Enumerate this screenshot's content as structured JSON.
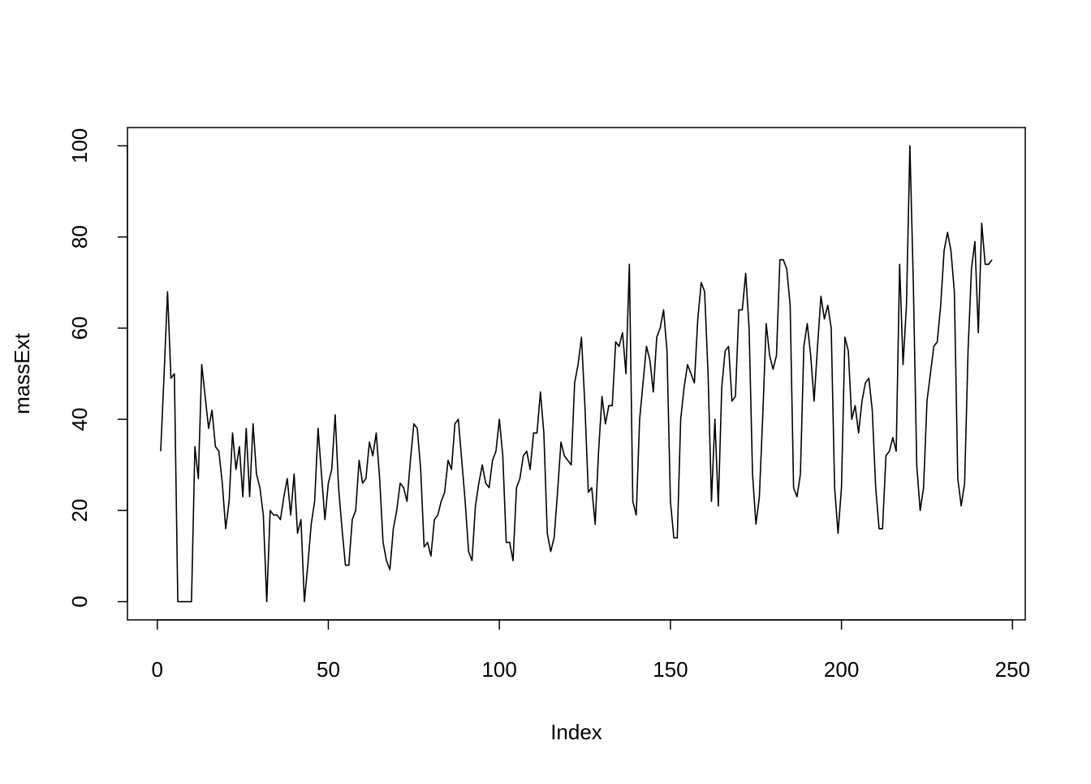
{
  "chart_data": {
    "type": "line",
    "xlabel": "Index",
    "ylabel": "massExt",
    "color": "#000000",
    "x": [
      1,
      2,
      3,
      4,
      5,
      6,
      7,
      8,
      9,
      10,
      11,
      12,
      13,
      14,
      15,
      16,
      17,
      18,
      19,
      20,
      21,
      22,
      23,
      24,
      25,
      26,
      27,
      28,
      29,
      30,
      31,
      32,
      33,
      34,
      35,
      36,
      37,
      38,
      39,
      40,
      41,
      42,
      43,
      44,
      45,
      46,
      47,
      48,
      49,
      50,
      51,
      52,
      53,
      54,
      55,
      56,
      57,
      58,
      59,
      60,
      61,
      62,
      63,
      64,
      65,
      66,
      67,
      68,
      69,
      70,
      71,
      72,
      73,
      74,
      75,
      76,
      77,
      78,
      79,
      80,
      81,
      82,
      83,
      84,
      85,
      86,
      87,
      88,
      89,
      90,
      91,
      92,
      93,
      94,
      95,
      96,
      97,
      98,
      99,
      100,
      101,
      102,
      103,
      104,
      105,
      106,
      107,
      108,
      109,
      110,
      111,
      112,
      113,
      114,
      115,
      116,
      117,
      118,
      119,
      120,
      121,
      122,
      123,
      124,
      125,
      126,
      127,
      128,
      129,
      130,
      131,
      132,
      133,
      134,
      135,
      136,
      137,
      138,
      139,
      140,
      141,
      142,
      143,
      144,
      145,
      146,
      147,
      148,
      149,
      150,
      151,
      152,
      153,
      154,
      155,
      156,
      157,
      158,
      159,
      160,
      161,
      162,
      163,
      164,
      165,
      166,
      167,
      168,
      169,
      170,
      171,
      172,
      173,
      174,
      175,
      176,
      177,
      178,
      179,
      180,
      181,
      182,
      183,
      184,
      185,
      186,
      187,
      188,
      189,
      190,
      191,
      192,
      193,
      194,
      195,
      196,
      197,
      198,
      199,
      200,
      201,
      202,
      203,
      204,
      205,
      206,
      207,
      208,
      209,
      210,
      211,
      212,
      213,
      214,
      215,
      216,
      217,
      218,
      219,
      220,
      221,
      222,
      223,
      224,
      225,
      226,
      227,
      228,
      229,
      230,
      231,
      232,
      233,
      234,
      235,
      236,
      237,
      238,
      239,
      240,
      241,
      242,
      243,
      244
    ],
    "values": [
      33,
      50,
      68,
      49,
      50,
      0,
      0,
      0,
      0,
      0,
      34,
      27,
      52,
      45,
      38,
      42,
      34,
      33,
      26,
      16,
      22,
      37,
      29,
      34,
      23,
      38,
      23,
      39,
      28,
      25,
      19,
      0,
      20,
      19,
      19,
      18,
      23,
      27,
      19,
      28,
      15,
      18,
      0,
      8,
      17,
      22,
      38,
      28,
      18,
      26,
      29,
      41,
      25,
      16,
      8,
      8,
      18,
      20,
      31,
      26,
      27,
      35,
      32,
      37,
      27,
      13,
      9,
      7,
      16,
      20,
      26,
      25,
      22,
      31,
      39,
      38,
      29,
      12,
      13,
      10,
      18,
      19,
      22,
      24,
      31,
      29,
      39,
      40,
      31,
      22,
      11,
      9,
      21,
      26,
      30,
      26,
      25,
      31,
      33,
      40,
      32,
      13,
      13,
      9,
      25,
      27,
      32,
      33,
      29,
      37,
      37,
      46,
      37,
      15,
      11,
      14,
      24,
      35,
      32,
      31,
      30,
      48,
      52,
      58,
      43,
      24,
      25,
      17,
      33,
      45,
      39,
      43,
      43,
      57,
      56,
      59,
      50,
      74,
      22,
      19,
      40,
      48,
      56,
      53,
      46,
      58,
      60,
      64,
      55,
      22,
      14,
      14,
      40,
      47,
      52,
      50,
      48,
      62,
      70,
      68,
      50,
      22,
      40,
      21,
      47,
      55,
      56,
      44,
      45,
      64,
      64,
      72,
      60,
      28,
      17,
      23,
      41,
      61,
      54,
      51,
      54,
      75,
      75,
      73,
      65,
      25,
      23,
      28,
      56,
      61,
      54,
      44,
      56,
      67,
      62,
      65,
      60,
      25,
      15,
      25,
      58,
      55,
      40,
      43,
      37,
      44,
      48,
      49,
      42,
      25,
      16,
      16,
      32,
      33,
      36,
      33,
      74,
      52,
      65,
      100,
      70,
      30,
      20,
      25,
      44,
      50,
      56,
      57,
      65,
      77,
      81,
      77,
      68,
      27,
      21,
      26,
      55,
      73,
      79,
      59,
      83,
      74,
      74,
      75
    ],
    "xlim": [
      -8.72,
      253.72
    ],
    "ylim": [
      -4,
      104
    ],
    "xticks": [
      0,
      50,
      100,
      150,
      200,
      250
    ],
    "yticks": [
      0,
      20,
      40,
      60,
      80,
      100
    ]
  }
}
